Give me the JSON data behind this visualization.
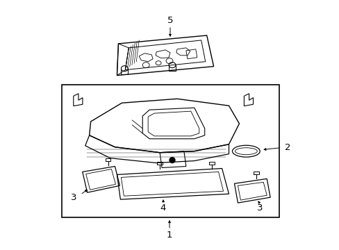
{
  "background_color": "#ffffff",
  "line_color": "#000000",
  "fig_width": 4.89,
  "fig_height": 3.6,
  "dpi": 100,
  "font_size": 8.5
}
